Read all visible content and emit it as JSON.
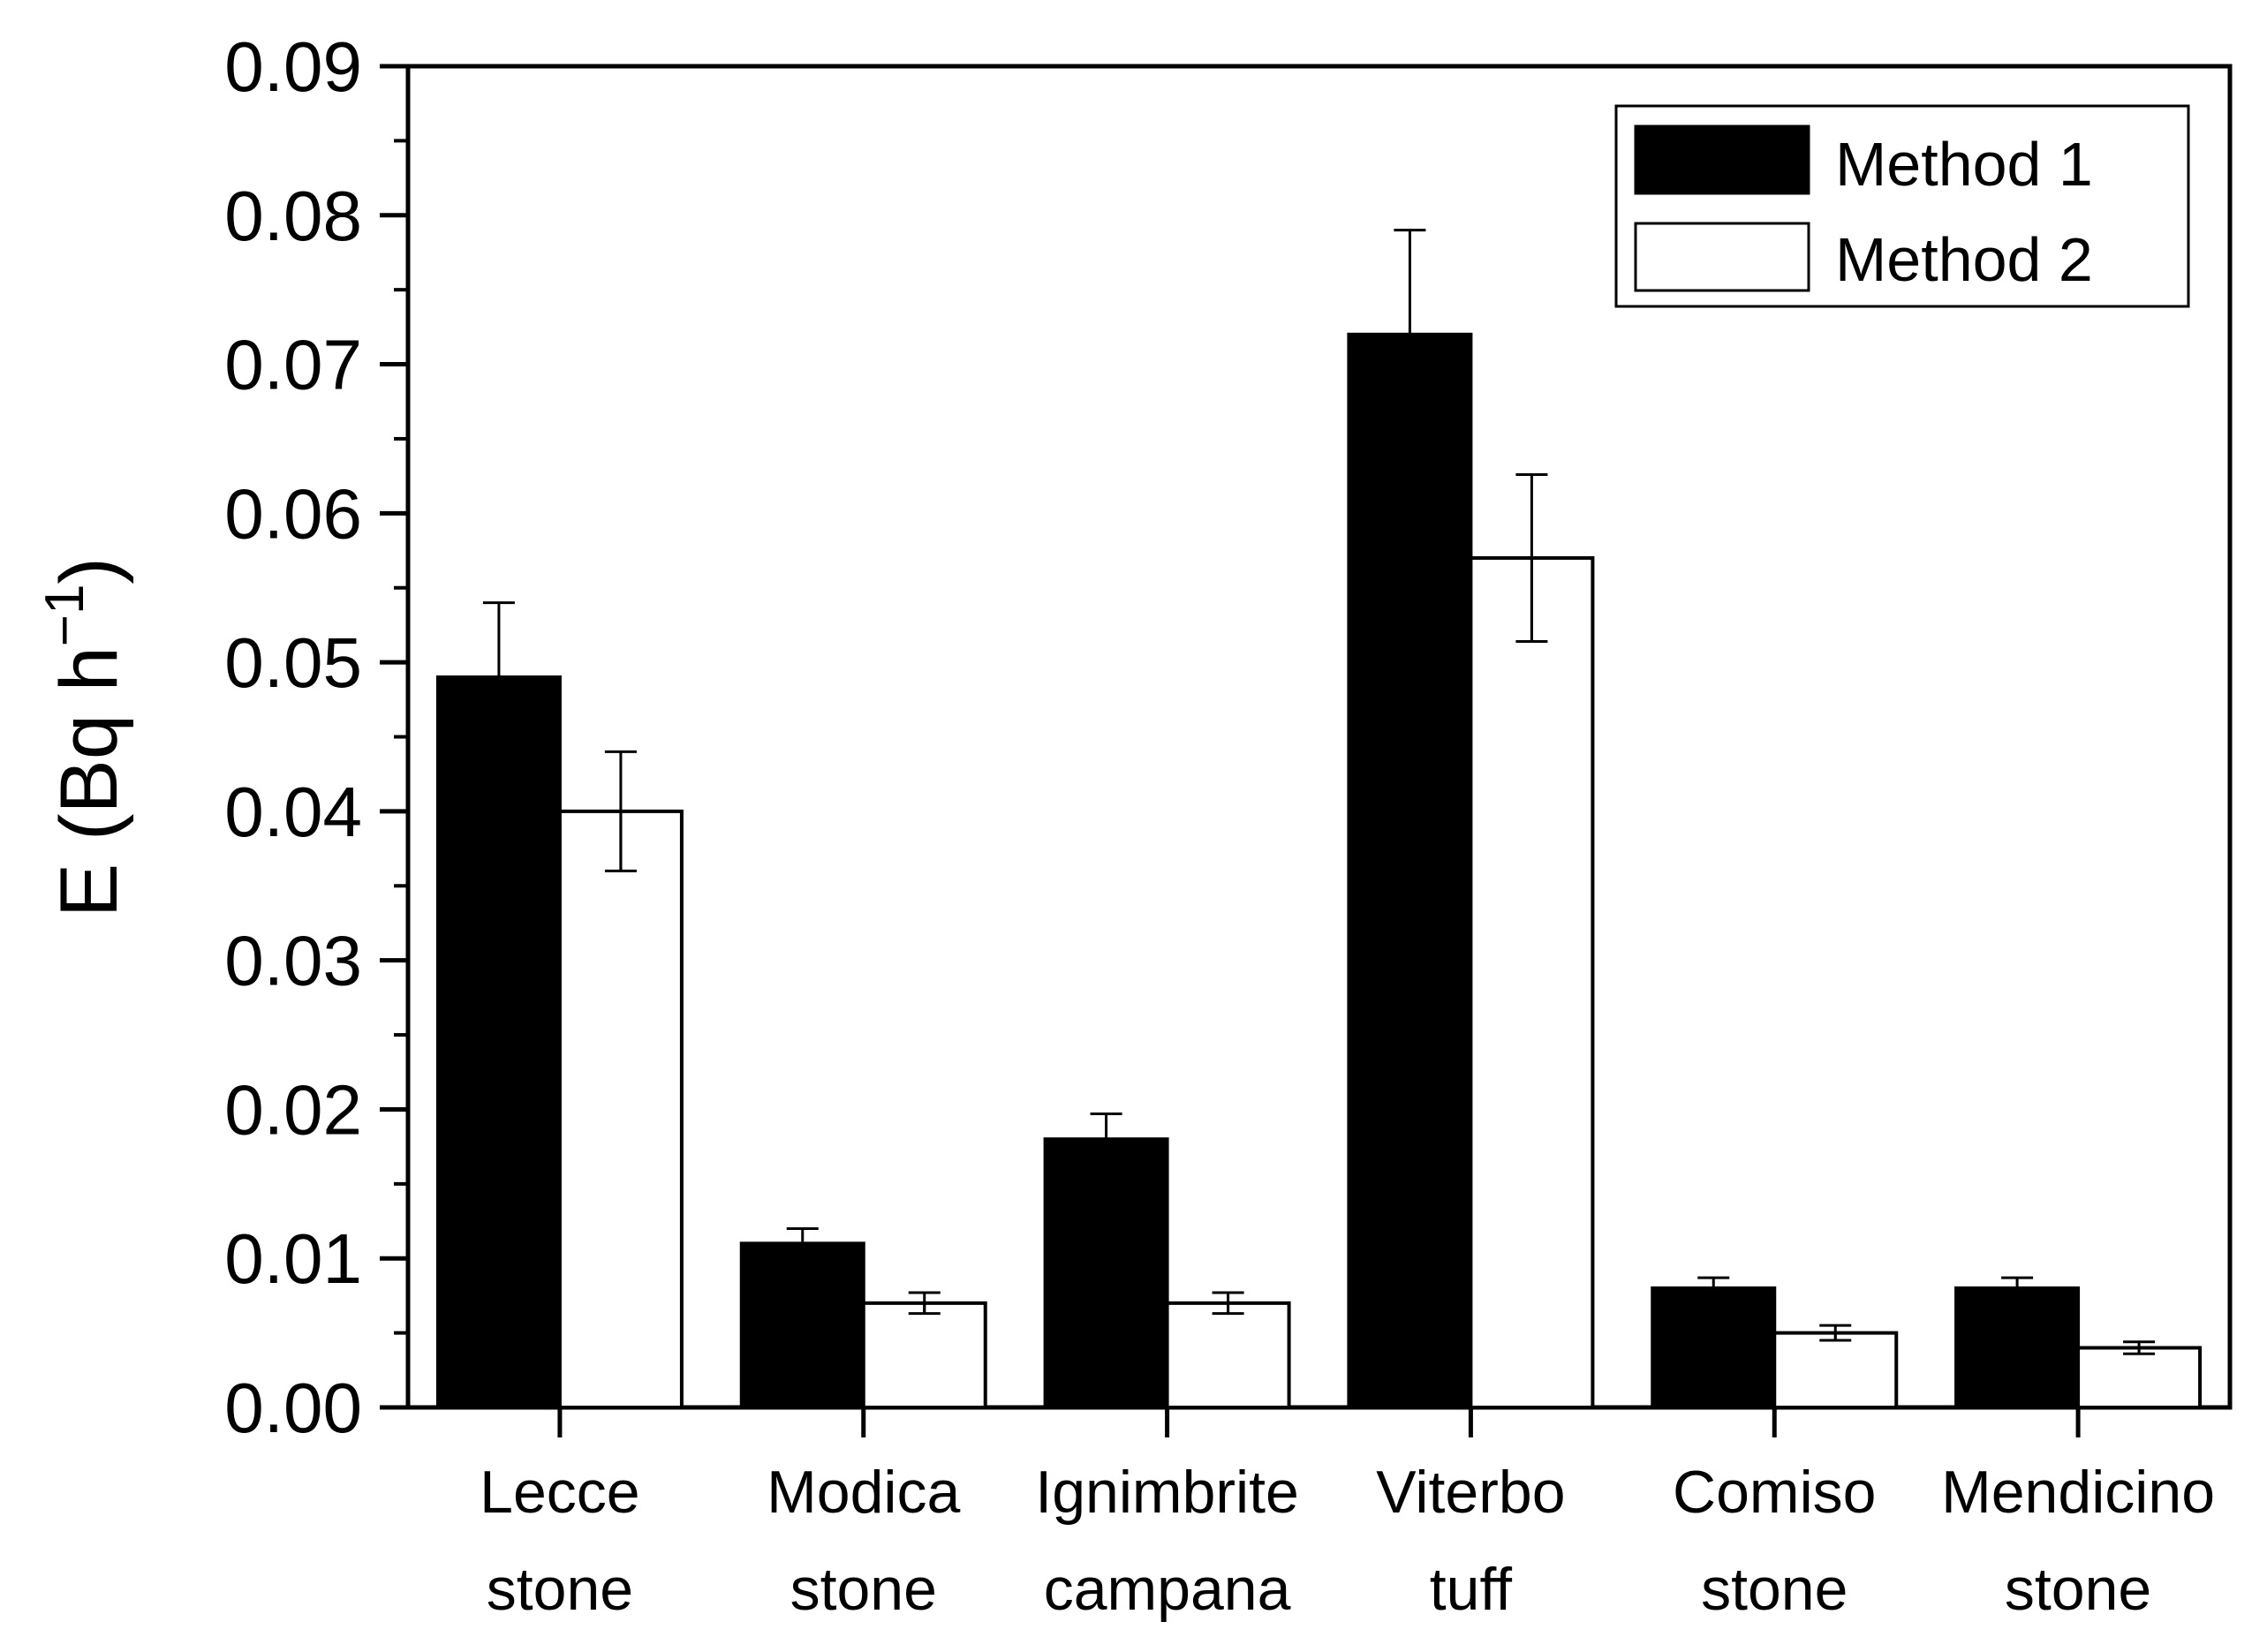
{
  "chart_data": {
    "type": "bar",
    "title": "",
    "xlabel": "",
    "ylabel": "E (Bq h",
    "ylabel_superscript": "−1",
    "ylabel_close": ")",
    "ylim": [
      0,
      0.09
    ],
    "yticks": [
      0.0,
      0.01,
      0.02,
      0.03,
      0.04,
      0.05,
      0.06,
      0.07,
      0.08,
      0.09
    ],
    "ytick_labels": [
      "0.00",
      "0.01",
      "0.02",
      "0.03",
      "0.04",
      "0.05",
      "0.06",
      "0.07",
      "0.08",
      "0.09"
    ],
    "categories": [
      [
        "Lecce",
        "stone"
      ],
      [
        "Modica",
        "stone"
      ],
      [
        "Ignimbrite",
        "campana"
      ],
      [
        "Viterbo",
        "tuff"
      ],
      [
        "Comiso",
        "stone"
      ],
      [
        "Mendicino",
        "stone"
      ]
    ],
    "series": [
      {
        "name": "Method 1",
        "color": "#000000",
        "values": [
          0.049,
          0.011,
          0.018,
          0.072,
          0.008,
          0.008
        ],
        "errors": [
          0.005,
          0.001,
          0.0017,
          0.007,
          0.0007,
          0.0007
        ]
      },
      {
        "name": "Method 2",
        "color": "#ffffff",
        "values": [
          0.04,
          0.007,
          0.007,
          0.057,
          0.005,
          0.004
        ],
        "errors": [
          0.004,
          0.0007,
          0.0007,
          0.0056,
          0.0005,
          0.0004
        ]
      }
    ],
    "legend_position": "top-right",
    "grid": false
  }
}
